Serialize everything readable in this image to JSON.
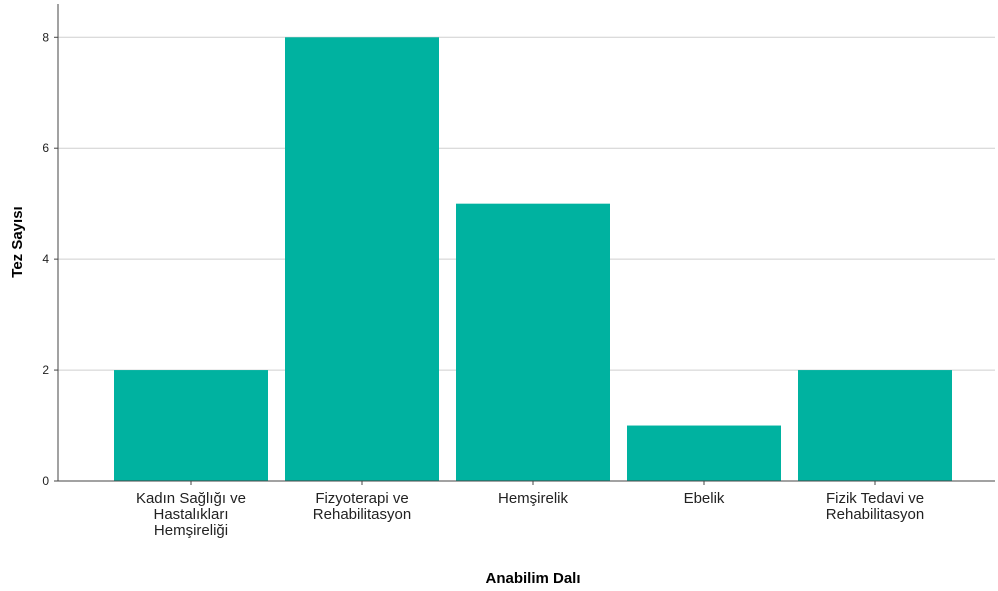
{
  "chart_data": {
    "type": "bar",
    "categories": [
      [
        "Kadın Sağlığı ve",
        "Hastalıkları",
        "Hemşireliği"
      ],
      [
        "Fizyoterapi ve",
        "Rehabilitasyon"
      ],
      [
        "Hemşirelik"
      ],
      [
        "Ebelik"
      ],
      [
        "Fizik Tedavi ve",
        "Rehabilitasyon"
      ]
    ],
    "values": [
      2,
      8,
      5,
      1,
      2
    ],
    "xlabel": "Anabilim Dalı",
    "ylabel": "Tez Sayısı",
    "ylim": [
      0,
      8.6
    ],
    "yticks": [
      0,
      2,
      4,
      6,
      8
    ],
    "grid": true,
    "bar_color": "#00B2A0"
  }
}
